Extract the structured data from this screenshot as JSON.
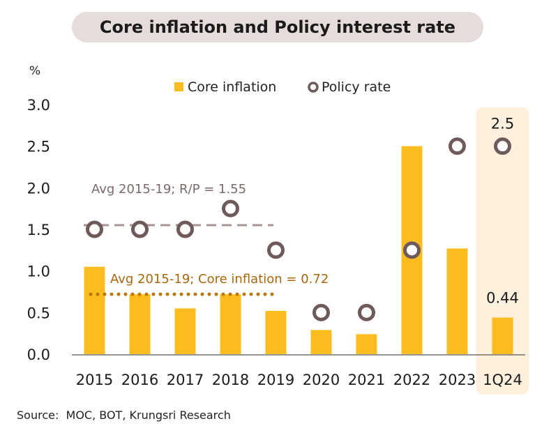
{
  "chart_data": {
    "type": "bar",
    "title": "Core inflation and Policy interest rate",
    "ylabel": "%",
    "ylim": [
      0,
      3.0
    ],
    "yticks": [
      "0.0",
      "0.5",
      "1.0",
      "1.5",
      "2.0",
      "2.5",
      "3.0"
    ],
    "categories": [
      "2015",
      "2016",
      "2017",
      "2018",
      "2019",
      "2020",
      "2021",
      "2022",
      "2023",
      "1Q24"
    ],
    "series": [
      {
        "name": "Core inflation",
        "kind": "bar",
        "color": "#fbbc1f",
        "values": [
          1.05,
          0.72,
          0.55,
          0.72,
          0.52,
          0.29,
          0.24,
          2.5,
          1.27,
          0.44
        ]
      },
      {
        "name": "Policy rate",
        "kind": "marker",
        "color": "#6e5a5a",
        "values": [
          1.5,
          1.5,
          1.5,
          1.75,
          1.25,
          0.5,
          0.5,
          1.25,
          2.5,
          2.5
        ]
      }
    ],
    "reference_lines": [
      {
        "label": "Avg 2015-19; R/P = 1.55",
        "value": 1.55,
        "color": "#a89494",
        "style": "dashed"
      },
      {
        "label": "Avg 2015-19; Core inflation = 0.72",
        "value": 0.72,
        "color": "#b9770f",
        "style": "dotted"
      }
    ],
    "data_labels": [
      {
        "category": "1Q24",
        "text": "2.5"
      },
      {
        "category": "1Q24",
        "text": "0.44"
      }
    ],
    "highlight_category": "1Q24",
    "highlight_color": "#fdf0dc",
    "legend_position": "top-center",
    "grid": false
  },
  "source": "Source:  MOC, BOT, Krungsri Research"
}
